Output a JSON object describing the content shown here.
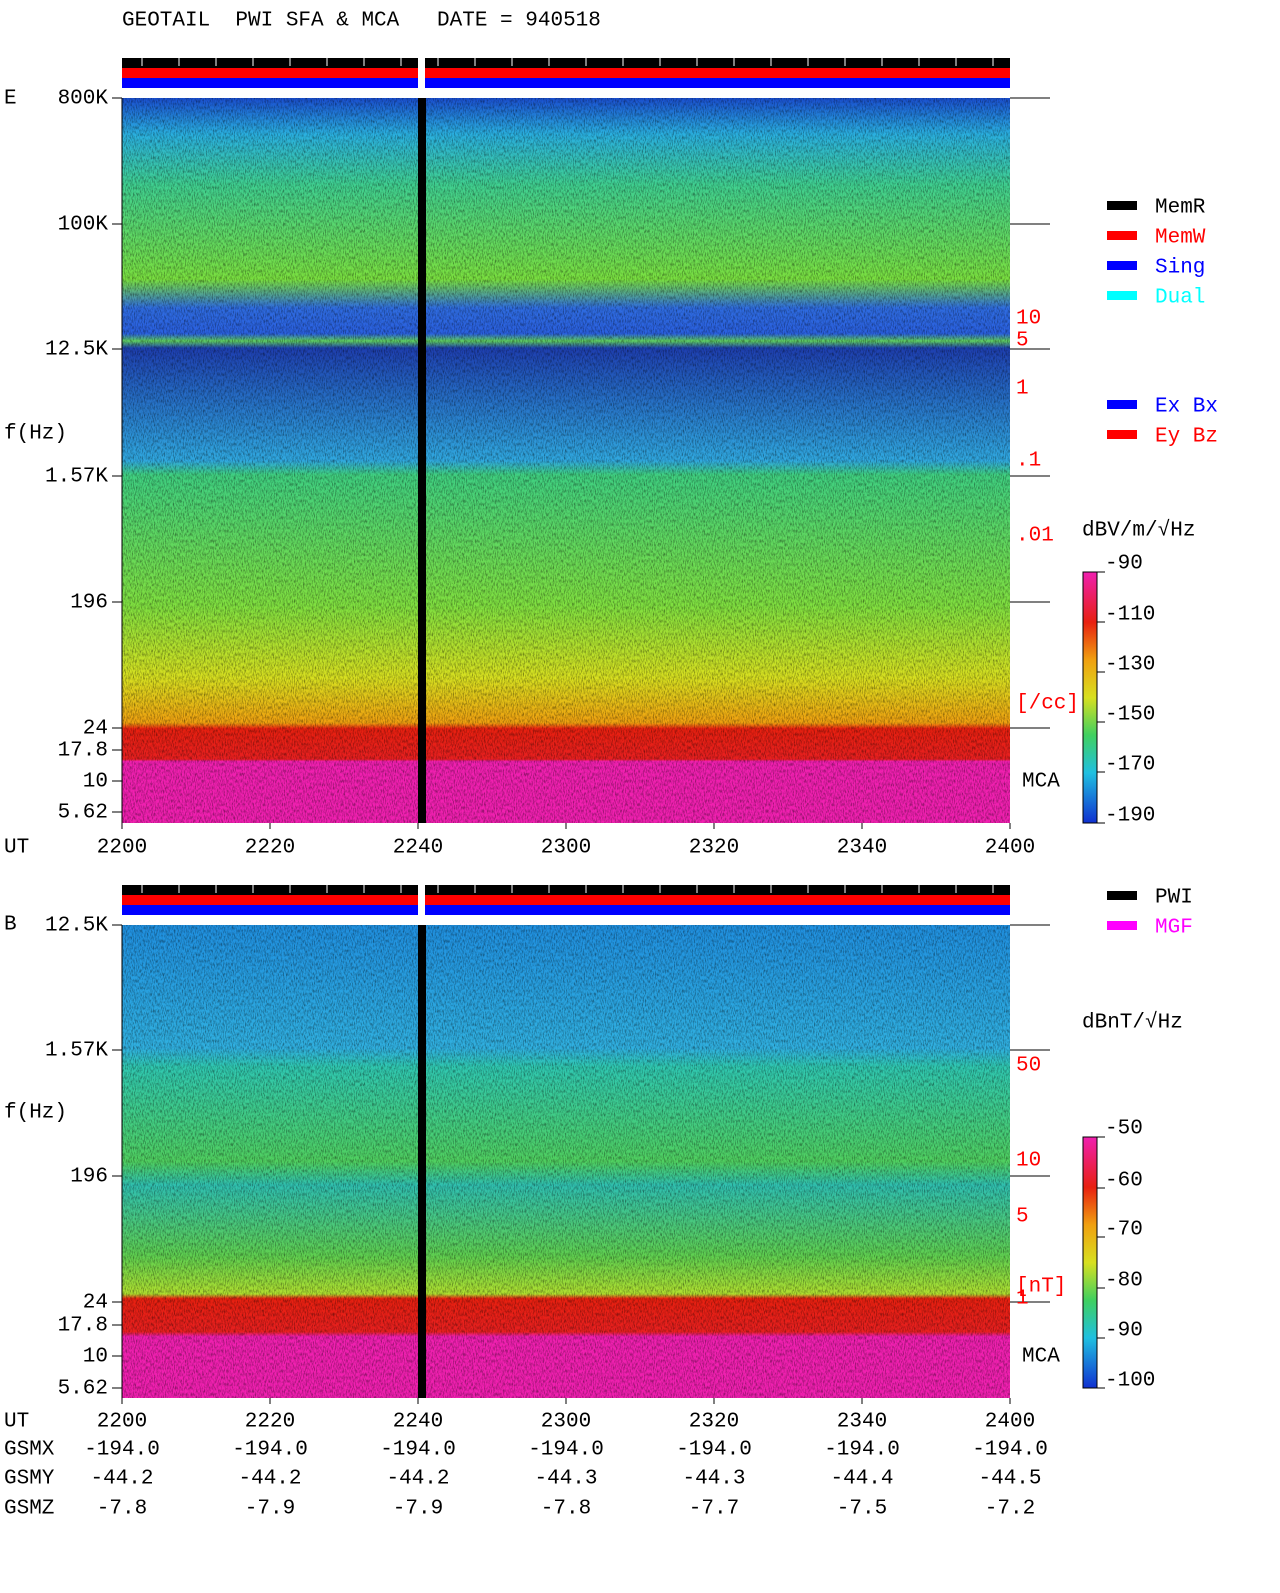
{
  "header": {
    "title": "GEOTAIL  PWI SFA & MCA   DATE = 940518"
  },
  "panels": [
    {
      "label": "E",
      "ylabel": "f(Hz)",
      "yticks": [
        "800K",
        "100K",
        "12.5K",
        "1.57K",
        "196",
        "24",
        "17.8",
        "10",
        "5.62"
      ],
      "xlabel": "UT",
      "xticks": [
        "2200",
        "2220",
        "2240",
        "2300",
        "2320",
        "2340",
        "2400"
      ],
      "right_labels": [
        "10",
        "5",
        "1",
        ".1",
        ".01",
        "[/cc]"
      ],
      "mca": "MCA",
      "legend": [
        "MemR",
        "MemW",
        "Sing",
        "Dual",
        "Ex Bx",
        "Ey Bz"
      ],
      "unit": "dBV/m/√Hz",
      "colorbar": [
        "-90",
        "-110",
        "-130",
        "-150",
        "-170",
        "-190"
      ]
    },
    {
      "label": "B",
      "ylabel": "f(Hz)",
      "yticks": [
        "12.5K",
        "1.57K",
        "196",
        "24",
        "17.8",
        "10",
        "5.62"
      ],
      "xlabel": "UT",
      "xticks": [
        "2200",
        "2220",
        "2240",
        "2300",
        "2320",
        "2340",
        "2400"
      ],
      "right_labels": [
        "50",
        "10",
        "5",
        "[nT]",
        "1"
      ],
      "mca": "MCA",
      "legend": [
        "PWI",
        "MGF"
      ],
      "unit": "dBnT/√Hz",
      "colorbar": [
        "-50",
        "-60",
        "-70",
        "-80",
        "-90",
        "-100"
      ]
    }
  ],
  "position": {
    "rows": [
      {
        "name": "GSMX",
        "values": [
          "-194.0",
          "-194.0",
          "-194.0",
          "-194.0",
          "-194.0",
          "-194.0",
          "-194.0"
        ]
      },
      {
        "name": "GSMY",
        "values": [
          "-44.2",
          "-44.2",
          "-44.2",
          "-44.3",
          "-44.3",
          "-44.4",
          "-44.5"
        ]
      },
      {
        "name": "GSMZ",
        "values": [
          "-7.8",
          "-7.9",
          "-7.9",
          "-7.8",
          "-7.7",
          "-7.5",
          "-7.2"
        ]
      }
    ]
  }
}
